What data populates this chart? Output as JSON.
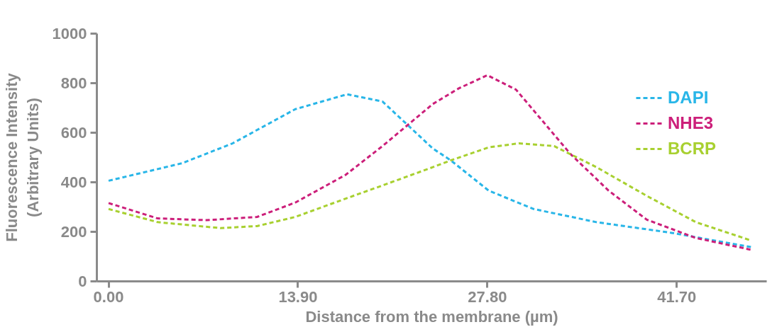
{
  "chart_data": {
    "type": "line",
    "xlabel": "Distance from the membrane (µm)",
    "ylabel": "Fluorescence Intensity\n(Arbitrary Units)",
    "xlim": [
      -0.86,
      48.3
    ],
    "ylim": [
      0,
      1000
    ],
    "xticks": [
      {
        "value": 0,
        "label": "0.00"
      },
      {
        "value": 13.9,
        "label": "13.90"
      },
      {
        "value": 27.8,
        "label": "27.80"
      },
      {
        "value": 41.7,
        "label": "41.70"
      }
    ],
    "yticks": [
      0,
      200,
      400,
      600,
      800,
      1000
    ],
    "grid": false,
    "legend": "top right",
    "line_style": "dashed",
    "series": [
      {
        "name": "DAPI",
        "color": "#29b6e8",
        "x": [
          0,
          5.4,
          9.1,
          13.7,
          17.5,
          20.1,
          23.8,
          25.1,
          27.9,
          31.2,
          35.8,
          41.3,
          47.2
        ],
        "values": [
          406,
          477,
          557,
          695,
          755,
          726,
          536,
          489,
          366,
          292,
          239,
          196,
          138
        ]
      },
      {
        "name": "NHE3",
        "color": "#cc1f7a",
        "x": [
          0,
          3.6,
          7.2,
          10.9,
          13.7,
          17.4,
          20.1,
          23.8,
          25.7,
          27.8,
          29.9,
          32.1,
          33.9,
          36.7,
          39.5,
          43.1,
          47.2
        ],
        "values": [
          316,
          254,
          247,
          260,
          318,
          430,
          546,
          716,
          779,
          832,
          774,
          631,
          514,
          366,
          249,
          175,
          127
        ]
      },
      {
        "name": "BCRP",
        "color": "#a8d030",
        "x": [
          0,
          3.6,
          8.2,
          10.9,
          13.7,
          17.4,
          20.1,
          23.8,
          25.1,
          27.9,
          30.1,
          32.7,
          35.8,
          39.5,
          43.1,
          47.2
        ],
        "values": [
          292,
          239,
          215,
          223,
          260,
          334,
          387,
          461,
          488,
          541,
          557,
          546,
          461,
          345,
          239,
          164
        ]
      }
    ]
  }
}
